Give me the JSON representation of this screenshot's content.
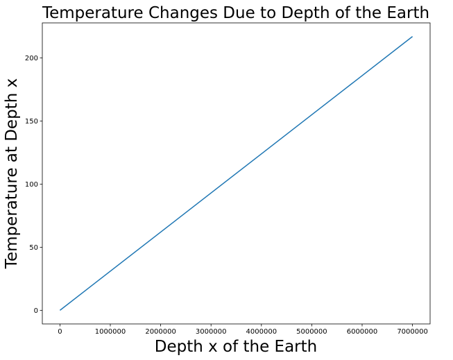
{
  "chart_data": {
    "type": "line",
    "title": "Temperature Changes Due to Depth of the Earth",
    "xlabel": "Depth x of the Earth",
    "ylabel": "Temperature at Depth x",
    "xlim": [
      -350000,
      7350000
    ],
    "ylim": [
      -10.8,
      227.8
    ],
    "xticks": [
      0,
      1000000,
      2000000,
      3000000,
      4000000,
      5000000,
      6000000,
      7000000
    ],
    "xtick_labels": [
      "0",
      "1000000",
      "2000000",
      "3000000",
      "4000000",
      "5000000",
      "6000000",
      "7000000"
    ],
    "yticks": [
      0,
      50,
      100,
      150,
      200
    ],
    "ytick_labels": [
      "0",
      "50",
      "100",
      "150",
      "200"
    ],
    "grid": false,
    "legend": "none",
    "series": [
      {
        "color": "#1f77b4",
        "x": [
          0,
          7000000
        ],
        "y": [
          0,
          217
        ]
      }
    ]
  }
}
